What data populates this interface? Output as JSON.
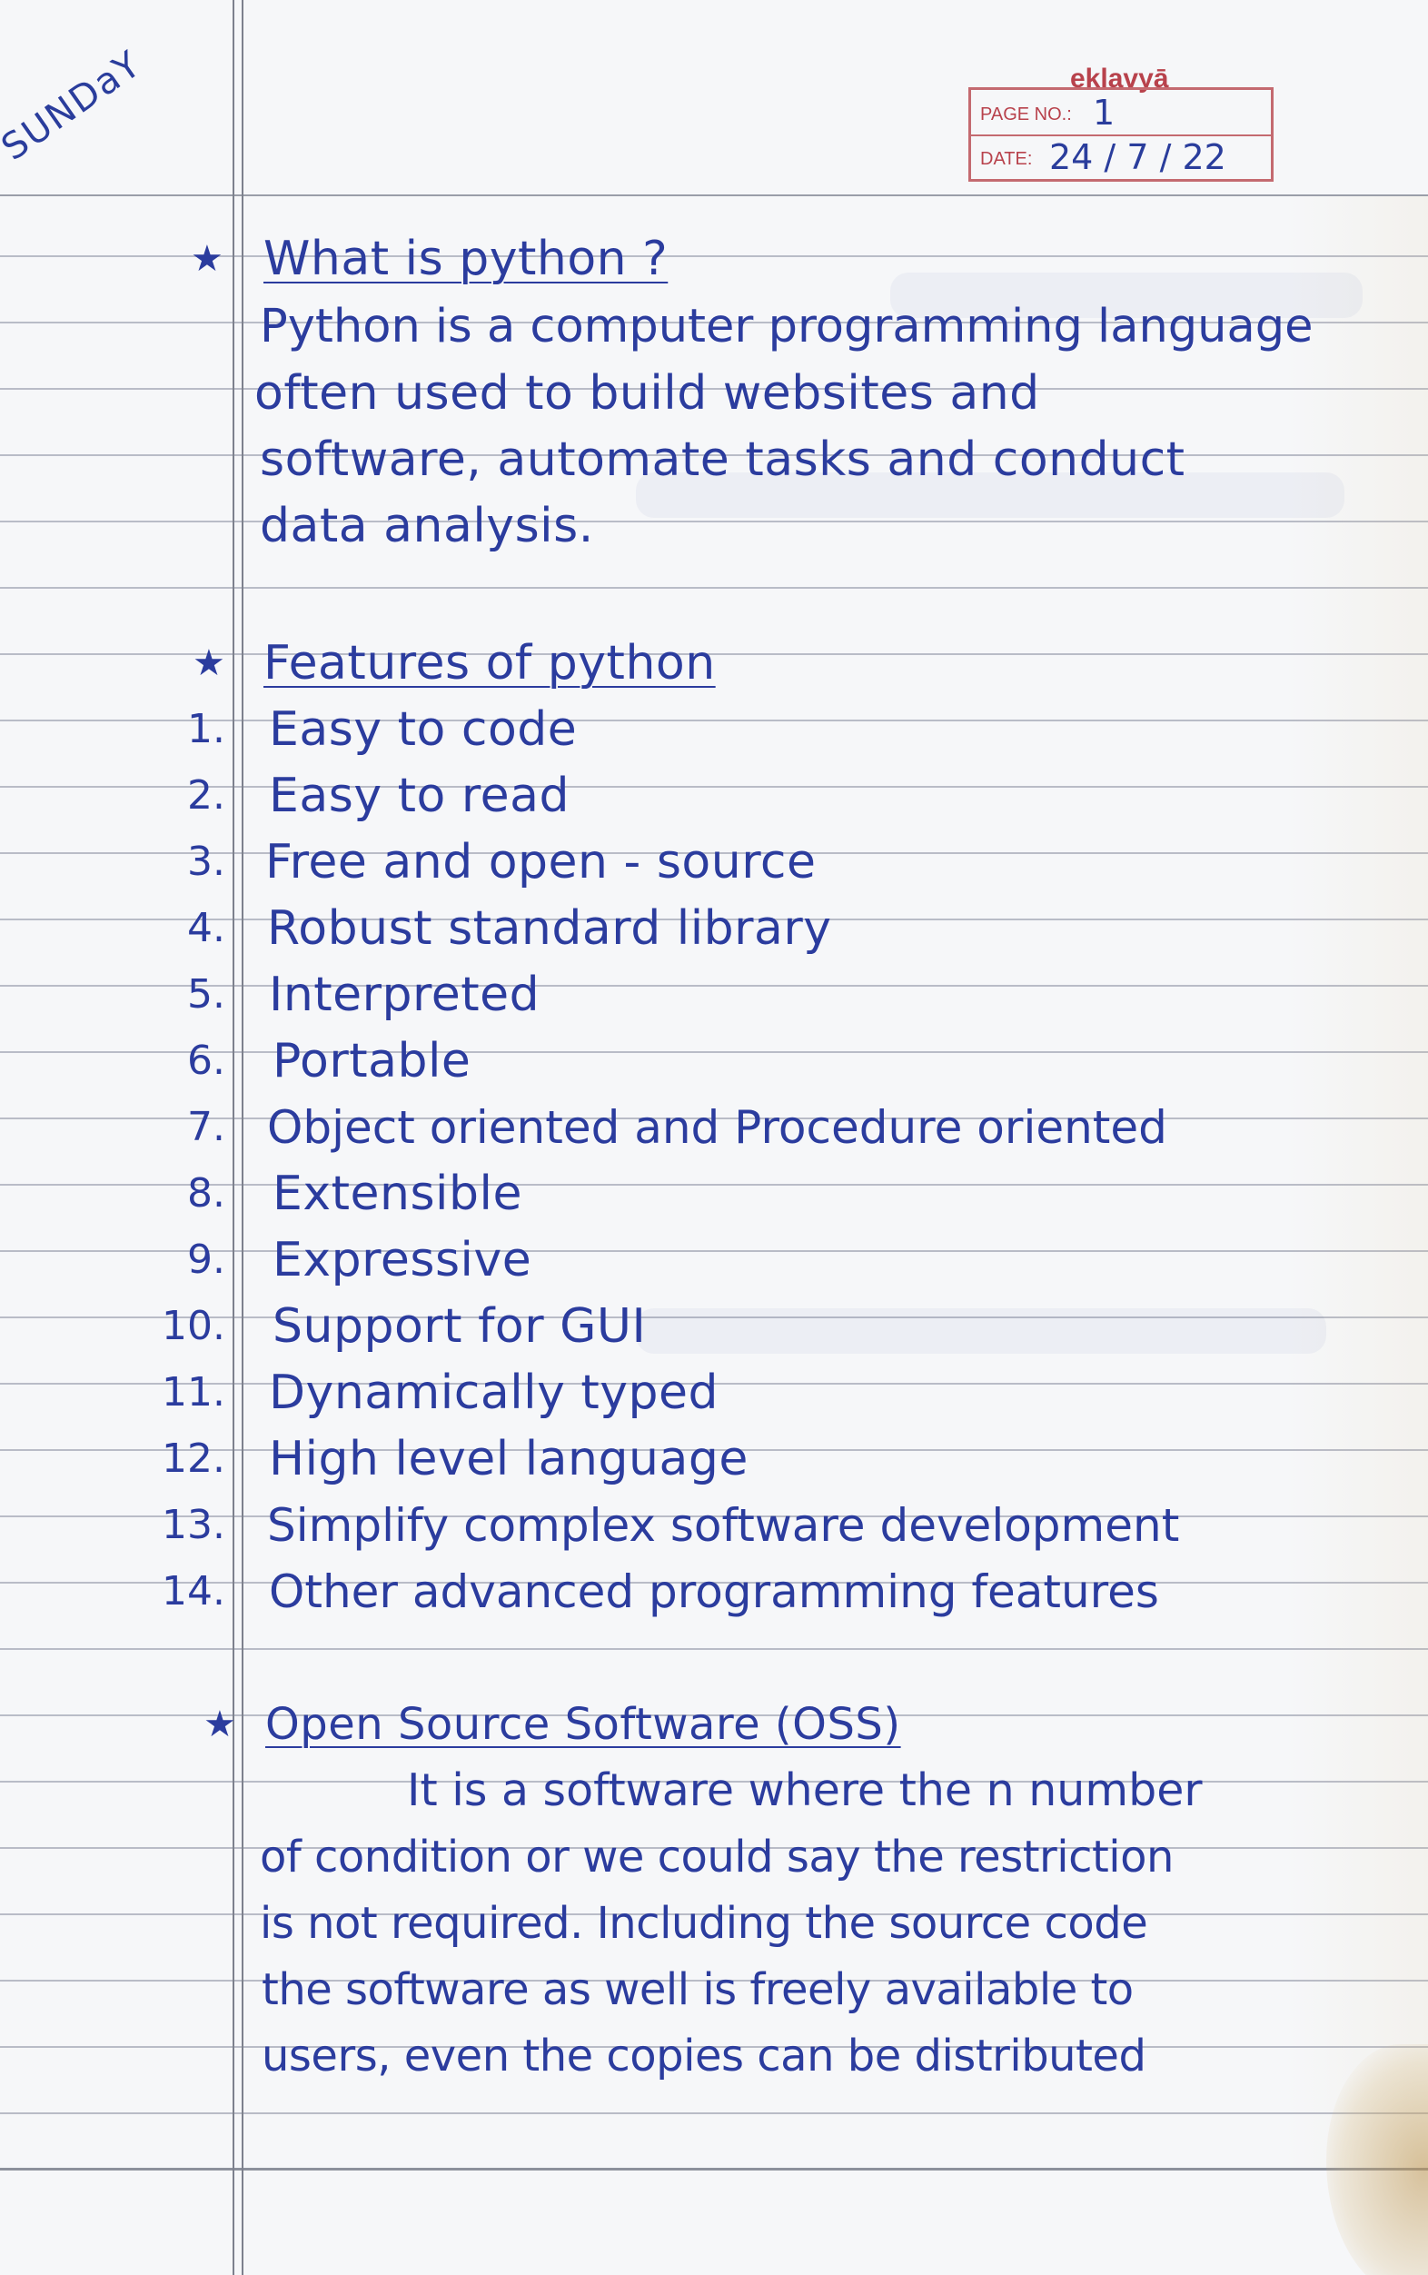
{
  "header": {
    "day": "SUNDaY",
    "brand": "eklavyā",
    "page_no_label": "PAGE NO.:",
    "page_no_value": "1",
    "date_label": "DATE:",
    "date_value": "24 / 7 / 22"
  },
  "section1": {
    "star": "★",
    "heading": "What is python ?",
    "lines": [
      "Python is a computer programming language",
      "often used to build websites and",
      "software, automate tasks and conduct",
      "data analysis."
    ]
  },
  "section2": {
    "star": "★",
    "heading": "Features of python",
    "items": [
      {
        "num": "1.",
        "text": "Easy to code"
      },
      {
        "num": "2.",
        "text": "Easy to read"
      },
      {
        "num": "3.",
        "text": "Free and open - source"
      },
      {
        "num": "4.",
        "text": "Robust standard library"
      },
      {
        "num": "5.",
        "text": "Interpreted"
      },
      {
        "num": "6.",
        "text": "Portable"
      },
      {
        "num": "7.",
        "text": "Object oriented and Procedure oriented"
      },
      {
        "num": "8.",
        "text": "Extensible"
      },
      {
        "num": "9.",
        "text": "Expressive"
      },
      {
        "num": "10.",
        "text": "Support for GUI"
      },
      {
        "num": "11.",
        "text": "Dynamically typed"
      },
      {
        "num": "12.",
        "text": "High level language"
      },
      {
        "num": "13.",
        "text": "Simplify complex software development"
      },
      {
        "num": "14.",
        "text": "Other advanced programming features"
      }
    ]
  },
  "section3": {
    "star": "★",
    "heading": "Open Source Software (OSS)",
    "lines": [
      "It is a software where the n number",
      "of condition or we could say the restriction",
      "is not required. Including the source code",
      "the software as well is freely available to",
      "users, even the copies can be distributed"
    ]
  }
}
